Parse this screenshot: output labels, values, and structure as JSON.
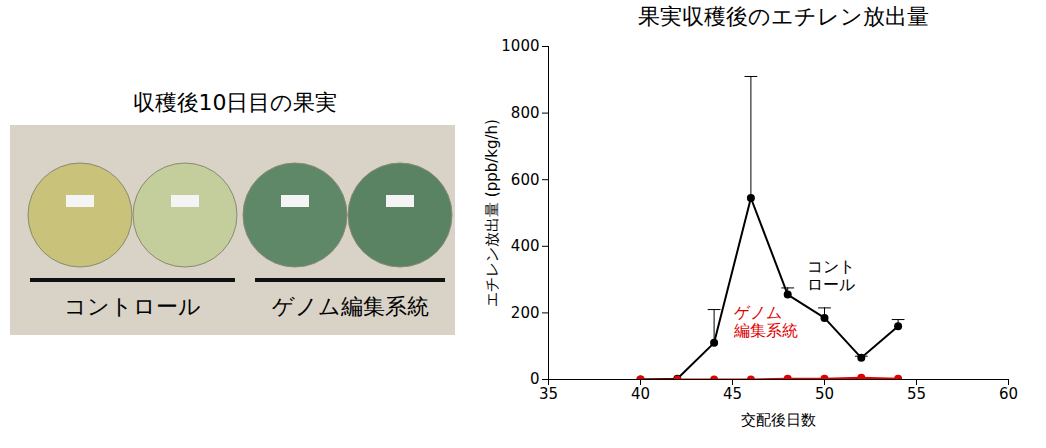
{
  "chart_data": {
    "type": "line",
    "title": "果実収穫後のエチレン放出量",
    "x_label": "交配後日数",
    "y_label": "エチレン放出量 (ppb/kg/h)",
    "x": [
      40,
      42,
      44,
      46,
      48,
      50,
      52,
      54
    ],
    "series": [
      {
        "name": "コントロール",
        "color": "#000000",
        "marker": "circle",
        "values": [
          0,
          2,
          110,
          545,
          255,
          185,
          65,
          160
        ],
        "errors": [
          0,
          0,
          100,
          365,
          20,
          30,
          5,
          20
        ]
      },
      {
        "name": "ゲノム編集系統",
        "color": "#e00000",
        "marker": "circle",
        "values": [
          0,
          0,
          0,
          0,
          2,
          2,
          5,
          2
        ]
      }
    ],
    "xlim": [
      35,
      60
    ],
    "xticks": [
      35,
      40,
      45,
      50,
      55,
      60
    ],
    "ylim": [
      0,
      1000
    ],
    "yticks": [
      0,
      200,
      400,
      600,
      800,
      1000
    ],
    "grid": false
  },
  "photo": {
    "title": "収穫後10日目の果実",
    "labels": [
      "コントロール",
      "ゲノム編集系統"
    ]
  }
}
